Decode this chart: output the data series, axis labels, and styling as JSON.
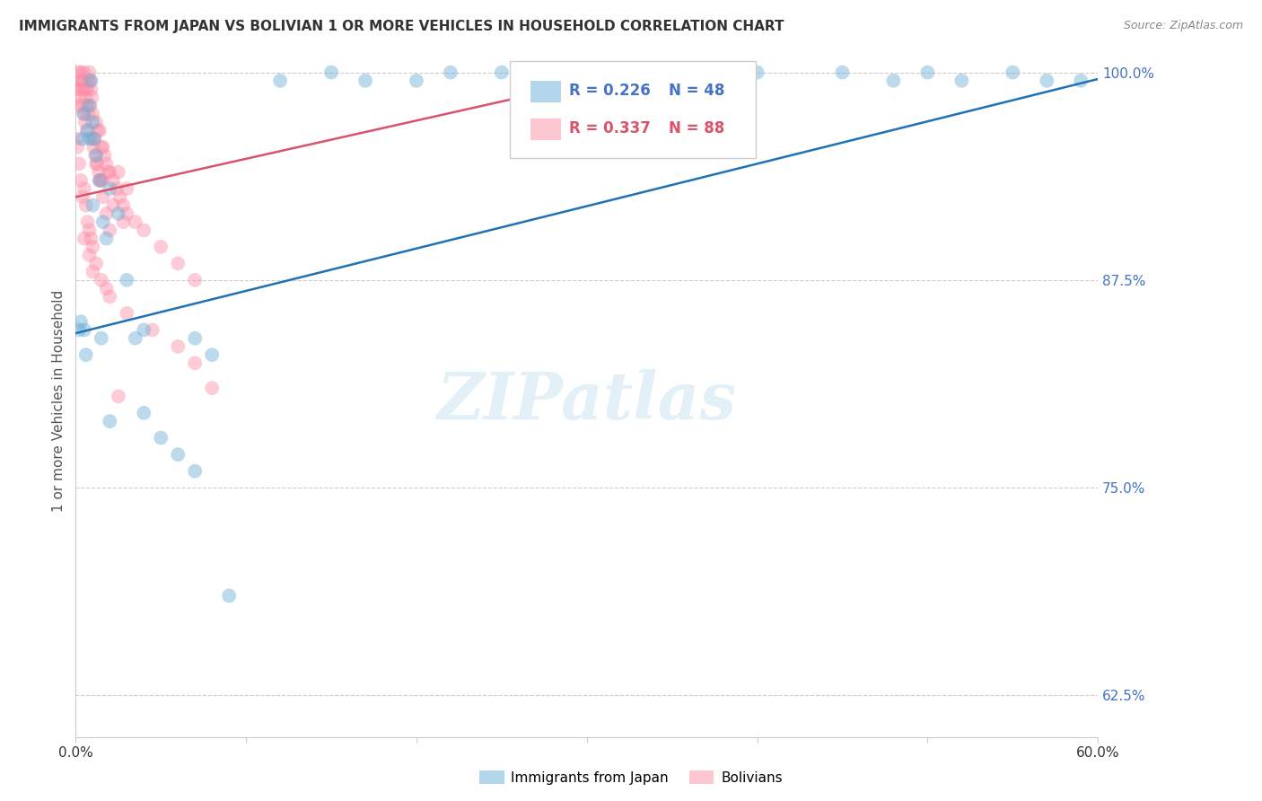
{
  "title": "IMMIGRANTS FROM JAPAN VS BOLIVIAN 1 OR MORE VEHICLES IN HOUSEHOLD CORRELATION CHART",
  "source": "Source: ZipAtlas.com",
  "ylabel": "1 or more Vehicles in Household",
  "xlim": [
    0.0,
    60.0
  ],
  "ylim": [
    60.0,
    100.5
  ],
  "xticks": [
    0.0,
    10.0,
    20.0,
    30.0,
    40.0,
    50.0,
    60.0
  ],
  "yticks": [
    62.5,
    75.0,
    87.5,
    100.0
  ],
  "ytick_labels": [
    "62.5%",
    "75.0%",
    "87.5%",
    "100.0%"
  ],
  "xtick_labels": [
    "0.0%",
    "",
    "",
    "",
    "",
    "",
    "60.0%"
  ],
  "blue_color": "#6baed6",
  "pink_color": "#fc8fa8",
  "blue_line_color": "#2171b5",
  "pink_line_color": "#d9536b",
  "legend_label_blue": "Immigrants from Japan",
  "legend_label_pink": "Bolivians",
  "watermark": "ZIPatlas",
  "blue_intercept": 84.3,
  "blue_slope": 0.255,
  "pink_intercept": 92.5,
  "pink_slope": 0.23,
  "blue_x": [
    0.2,
    0.3,
    0.4,
    0.5,
    0.6,
    0.7,
    0.8,
    0.9,
    1.0,
    1.1,
    1.2,
    1.4,
    1.6,
    1.8,
    2.0,
    2.5,
    3.0,
    3.5,
    4.0,
    5.0,
    6.0,
    7.0,
    8.0,
    12.0,
    15.0,
    17.0,
    20.0,
    22.0,
    25.0,
    30.0,
    33.0,
    35.0,
    40.0,
    45.0,
    48.0,
    50.0,
    52.0,
    55.0,
    57.0,
    59.0,
    0.5,
    0.8,
    1.0,
    1.5,
    2.0,
    4.0,
    7.0,
    9.0
  ],
  "blue_y": [
    84.5,
    85.0,
    96.0,
    97.5,
    83.0,
    96.5,
    98.0,
    99.5,
    97.0,
    96.0,
    95.0,
    93.5,
    91.0,
    90.0,
    93.0,
    91.5,
    87.5,
    84.0,
    84.5,
    78.0,
    77.0,
    84.0,
    83.0,
    99.5,
    100.0,
    99.5,
    99.5,
    100.0,
    100.0,
    100.0,
    100.0,
    100.0,
    100.0,
    100.0,
    99.5,
    100.0,
    99.5,
    100.0,
    99.5,
    99.5,
    84.5,
    96.0,
    92.0,
    84.0,
    79.0,
    79.5,
    76.0,
    68.5
  ],
  "pink_x": [
    0.05,
    0.1,
    0.15,
    0.2,
    0.25,
    0.3,
    0.35,
    0.4,
    0.45,
    0.5,
    0.55,
    0.6,
    0.65,
    0.7,
    0.75,
    0.8,
    0.85,
    0.9,
    0.95,
    1.0,
    1.1,
    1.2,
    1.3,
    1.4,
    1.5,
    1.6,
    1.7,
    1.8,
    1.9,
    2.0,
    2.2,
    2.4,
    2.6,
    2.8,
    3.0,
    3.5,
    4.0,
    5.0,
    6.0,
    7.0,
    0.1,
    0.2,
    0.3,
    0.4,
    0.5,
    0.6,
    0.7,
    0.8,
    0.9,
    1.0,
    1.2,
    1.4,
    1.6,
    1.8,
    2.0,
    2.5,
    3.0,
    0.15,
    0.25,
    0.35,
    0.45,
    0.55,
    0.65,
    0.75,
    0.85,
    0.95,
    1.05,
    1.15,
    1.25,
    1.35,
    1.45,
    1.55,
    2.2,
    2.8,
    1.0,
    1.5,
    2.0,
    3.0,
    4.5,
    6.0,
    7.0,
    8.0,
    0.5,
    0.8,
    1.2,
    1.8,
    2.5
  ],
  "pink_y": [
    96.0,
    98.0,
    99.0,
    100.0,
    99.5,
    100.0,
    99.5,
    99.0,
    99.5,
    100.0,
    99.0,
    98.5,
    98.0,
    99.0,
    99.5,
    100.0,
    99.5,
    99.0,
    98.5,
    97.5,
    96.0,
    97.0,
    96.5,
    96.5,
    95.5,
    95.5,
    95.0,
    94.5,
    94.0,
    94.0,
    93.5,
    93.0,
    92.5,
    92.0,
    91.5,
    91.0,
    90.5,
    89.5,
    88.5,
    87.5,
    95.5,
    94.5,
    93.5,
    92.5,
    93.0,
    92.0,
    91.0,
    90.5,
    90.0,
    89.5,
    94.5,
    93.5,
    92.5,
    91.5,
    90.5,
    94.0,
    93.0,
    99.0,
    98.5,
    98.0,
    97.5,
    97.0,
    96.5,
    97.5,
    98.0,
    96.0,
    95.5,
    95.0,
    94.5,
    94.0,
    93.5,
    93.5,
    92.0,
    91.0,
    88.0,
    87.5,
    86.5,
    85.5,
    84.5,
    83.5,
    82.5,
    81.0,
    90.0,
    89.0,
    88.5,
    87.0,
    80.5
  ]
}
